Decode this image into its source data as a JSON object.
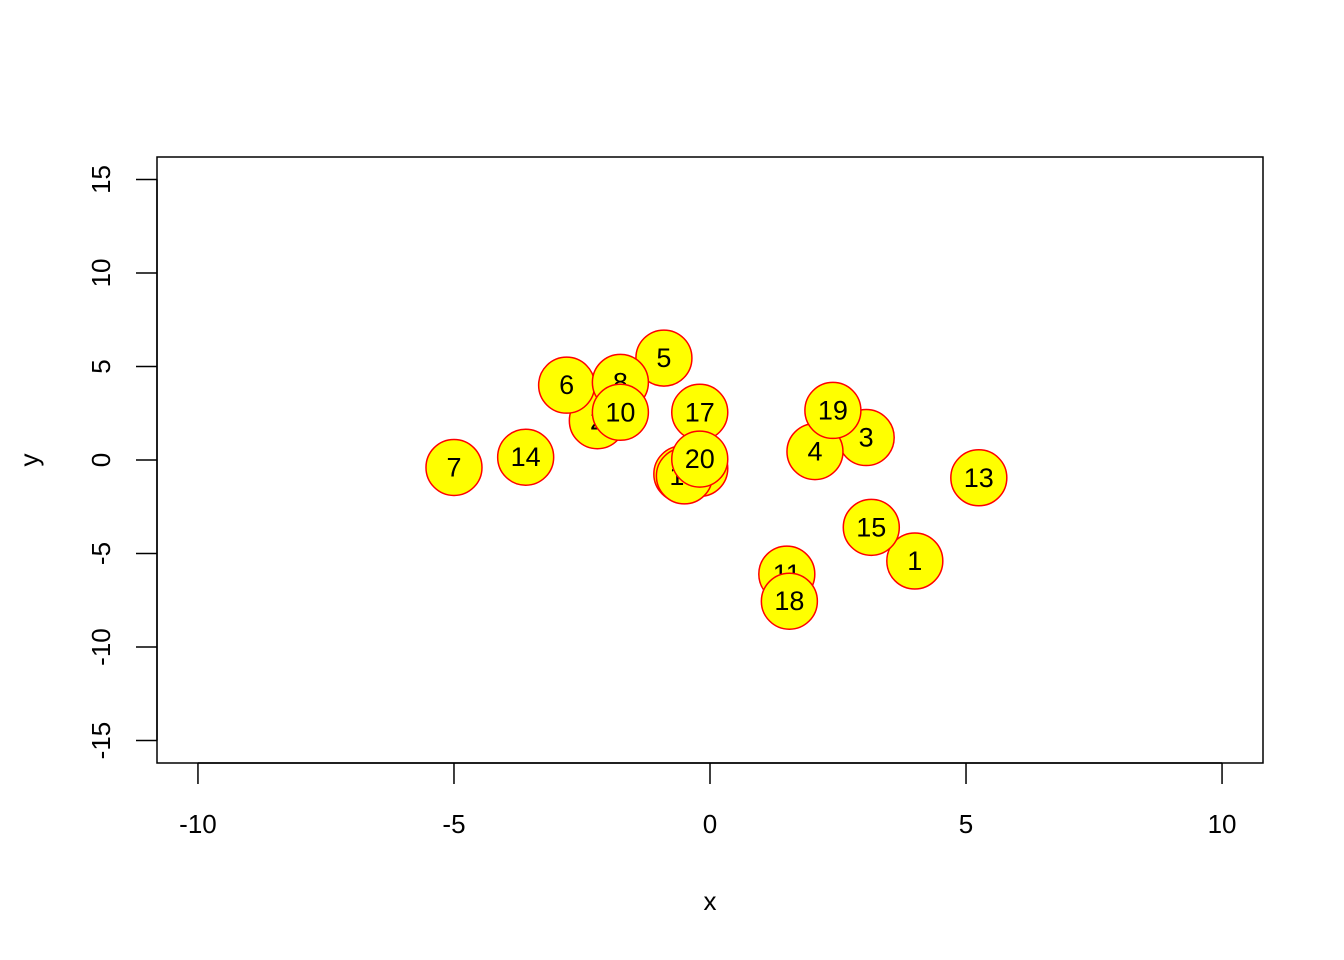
{
  "chart_data": {
    "type": "scatter",
    "title": "",
    "xlabel": "x",
    "ylabel": "y",
    "xlim": [
      -10.8,
      10.8
    ],
    "ylim": [
      -16.2,
      16.2
    ],
    "x_ticks": [
      -10,
      -5,
      0,
      5,
      10
    ],
    "y_ticks": [
      -15,
      -10,
      -5,
      0,
      5,
      10,
      15
    ],
    "x_tick_labels": [
      "-10",
      "-5",
      "0",
      "5",
      "10"
    ],
    "y_tick_labels": [
      "-15",
      "-10",
      "-5",
      "0",
      "5",
      "10",
      "15"
    ],
    "marker": {
      "shape": "circle",
      "fill": "#ffff00",
      "stroke": "#ff0000"
    },
    "grid": false,
    "points": [
      {
        "label": "1",
        "x": 4.0,
        "y": -5.4
      },
      {
        "label": "2",
        "x": -2.2,
        "y": 2.1
      },
      {
        "label": "3",
        "x": 3.05,
        "y": 1.2
      },
      {
        "label": "4",
        "x": 2.05,
        "y": 0.45
      },
      {
        "label": "5",
        "x": -0.9,
        "y": 5.45
      },
      {
        "label": "6",
        "x": -2.8,
        "y": 4.0
      },
      {
        "label": "7",
        "x": -5.0,
        "y": -0.4
      },
      {
        "label": "8",
        "x": -1.75,
        "y": 4.15
      },
      {
        "label": "9",
        "x": -0.2,
        "y": -0.45
      },
      {
        "label": "10",
        "x": -1.75,
        "y": 2.55
      },
      {
        "label": "11",
        "x": 1.5,
        "y": -6.1
      },
      {
        "label": "12",
        "x": -0.55,
        "y": -0.75
      },
      {
        "label": "13",
        "x": 5.25,
        "y": -0.95
      },
      {
        "label": "14",
        "x": -3.6,
        "y": 0.15
      },
      {
        "label": "15",
        "x": 3.15,
        "y": -3.6
      },
      {
        "label": "16",
        "x": -0.5,
        "y": -0.85
      },
      {
        "label": "17",
        "x": -0.2,
        "y": 2.55
      },
      {
        "label": "18",
        "x": 1.55,
        "y": -7.55
      },
      {
        "label": "19",
        "x": 2.4,
        "y": 2.65
      },
      {
        "label": "20",
        "x": -0.2,
        "y": 0.05
      }
    ]
  }
}
